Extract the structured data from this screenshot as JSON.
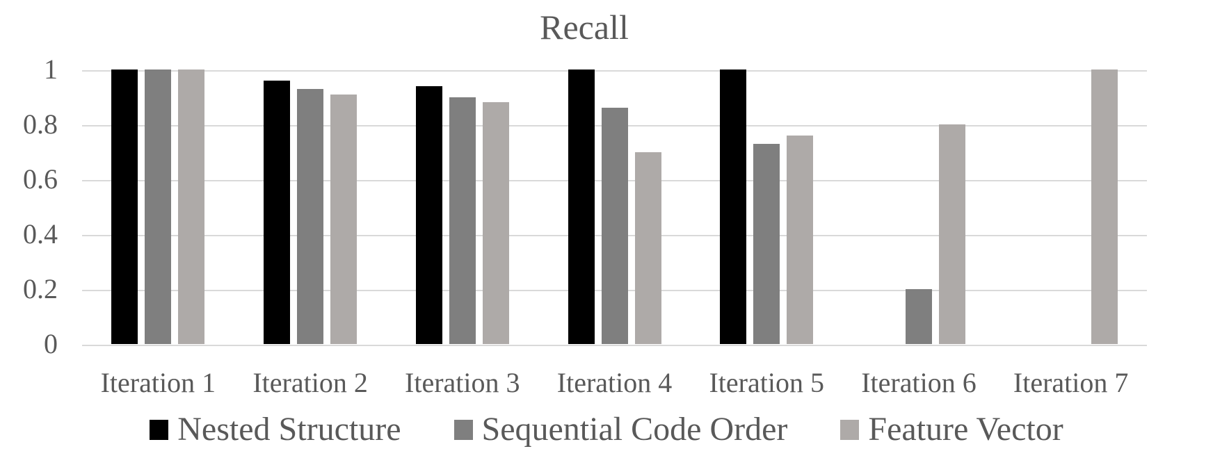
{
  "chart_data": {
    "type": "bar",
    "title": "Recall",
    "categories": [
      "Iteration 1",
      "Iteration 2",
      "Iteration 3",
      "Iteration 4",
      "Iteration 5",
      "Iteration 6",
      "Iteration 7"
    ],
    "series": [
      {
        "name": "Nested Structure",
        "color": "#000000",
        "values": [
          1,
          0.96,
          0.94,
          1,
          1,
          0,
          0
        ]
      },
      {
        "name": "Sequential Code Order",
        "color": "#7F7F7F",
        "values": [
          1,
          0.93,
          0.9,
          0.86,
          0.73,
          0.2,
          0
        ]
      },
      {
        "name": "Feature Vector",
        "color": "#AEAAA8",
        "values": [
          1,
          0.91,
          0.88,
          0.7,
          0.76,
          0.8,
          1
        ]
      }
    ],
    "xlabel": "",
    "ylabel": "",
    "ylim": [
      0,
      1
    ],
    "yticks": [
      0,
      0.2,
      0.4,
      0.6,
      0.8,
      1
    ],
    "ytick_labels": [
      "0",
      "0.2",
      "0.4",
      "0.6",
      "0.8",
      "1"
    ],
    "grid": true,
    "legend_position": "bottom",
    "colors": {
      "text": "#595959",
      "gridline": "#D9D9D9",
      "background": "#FFFFFF"
    }
  }
}
